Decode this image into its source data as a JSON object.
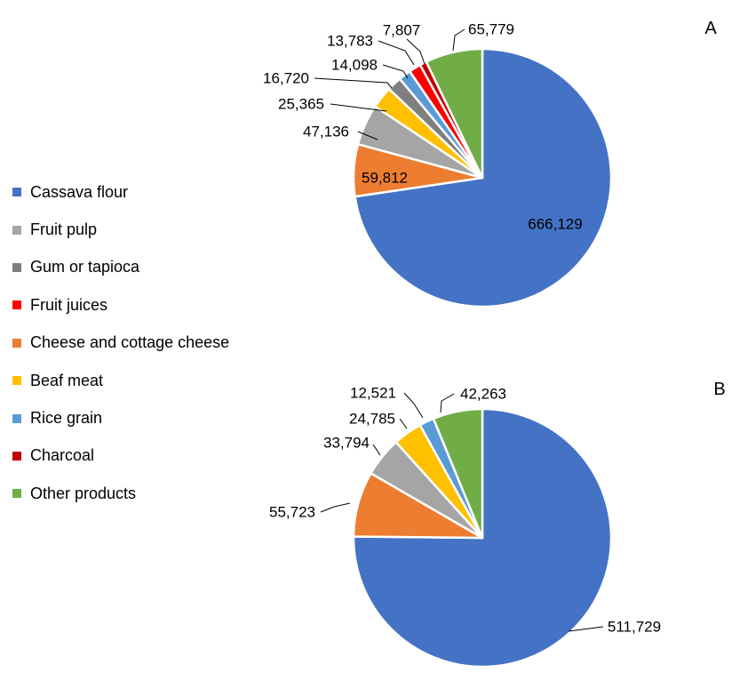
{
  "colors": {
    "Cassava flour": "#4472C4",
    "Fruit pulp": "#A5A5A5",
    "Gum or tapioca": "#7F7F7F",
    "Fruit juices": "#FF0000",
    "Cheese and cottage cheese": "#ED7D31",
    "Beaf meat": "#FFC000",
    "Rice grain": "#5B9BD5",
    "Charcoal": "#C00000",
    "Other products": "#70AD47"
  },
  "legend": {
    "items": [
      "Cassava flour",
      "Fruit pulp",
      "Gum or tapioca",
      "Fruit juices",
      "Cheese and cottage cheese",
      "Beaf meat",
      "Rice grain",
      "Charcoal",
      "Other products"
    ],
    "placement": "left"
  },
  "chart_data": [
    {
      "type": "pie",
      "panel_label": "A",
      "slices": [
        {
          "category": "Cassava flour",
          "value": 666129,
          "label": "666,129"
        },
        {
          "category": "Cheese and cottage cheese",
          "value": 59812,
          "label": "59,812"
        },
        {
          "category": "Fruit pulp",
          "value": 47136,
          "label": "47,136"
        },
        {
          "category": "Beaf meat",
          "value": 25365,
          "label": "25,365"
        },
        {
          "category": "Gum or tapioca",
          "value": 16720,
          "label": "16,720"
        },
        {
          "category": "Rice grain",
          "value": 14098,
          "label": "14,098"
        },
        {
          "category": "Fruit juices",
          "value": 13783,
          "label": "13,783"
        },
        {
          "category": "Charcoal",
          "value": 7807,
          "label": "7,807"
        },
        {
          "category": "Other products",
          "value": 65779,
          "label": "65,779"
        }
      ]
    },
    {
      "type": "pie",
      "panel_label": "B",
      "slices": [
        {
          "category": "Cassava flour",
          "value": 511729,
          "label": "511,729"
        },
        {
          "category": "Cheese and cottage cheese",
          "value": 55723,
          "label": "55,723"
        },
        {
          "category": "Fruit pulp",
          "value": 33794,
          "label": "33,794"
        },
        {
          "category": "Beaf meat",
          "value": 24785,
          "label": "24,785"
        },
        {
          "category": "Rice grain",
          "value": 12521,
          "label": "12,521"
        },
        {
          "category": "Other products",
          "value": 42263,
          "label": "42,263"
        }
      ]
    }
  ]
}
